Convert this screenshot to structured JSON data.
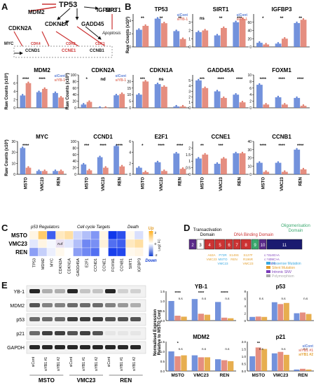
{
  "panels": {
    "A": "A",
    "B": "B",
    "C": "C",
    "D": "D",
    "E": "E"
  },
  "panelA": {
    "genes": [
      "TP53",
      "MDM2",
      "IGFBP3",
      "SIRT1",
      "CDKN2A",
      "CDKN1A",
      "GADD45",
      "Apoptosis",
      "MYC",
      "CDK4",
      "CDK2",
      "CDK1",
      "CCND1",
      "CCNE1",
      "CCNB1"
    ]
  },
  "legend": {
    "sicont": "siCont",
    "siyb1": "siYB-1",
    "siyb1_1": "siYB1 #1",
    "siyb1_2": "siYB1 #2"
  },
  "ylabels": {
    "raw": "Raw Counts (x10³)",
    "norm": "Normalised Expression\nRelative to MSTO Cont"
  },
  "cell_lines": [
    "MSTO",
    "VMC23",
    "REN"
  ],
  "colors": {
    "sicont": "#5b7fd6",
    "siyb1": "#e07a6a",
    "siyb1_2": "#e3a030"
  },
  "chart_data": [
    {
      "type": "bar",
      "title": "TP53",
      "categories": [
        "MSTO",
        "VMC23",
        "REN"
      ],
      "ylim": [
        0,
        5
      ],
      "yticks": [
        0,
        2,
        4
      ],
      "series": [
        {
          "name": "siCont",
          "values": [
            2.6,
            4.3,
            2.4
          ]
        },
        {
          "name": "siYB-1",
          "values": [
            3.2,
            3.6,
            1.2
          ]
        }
      ],
      "annotations": [
        "**",
        "**",
        "**"
      ]
    },
    {
      "type": "bar",
      "title": "SIRT1",
      "categories": [
        "MSTO",
        "VMC23",
        "REN"
      ],
      "ylim": [
        0,
        4
      ],
      "yticks": [
        0,
        1,
        2,
        3
      ],
      "series": [
        {
          "name": "siCont",
          "values": [
            1.8,
            1.4,
            3.0
          ]
        },
        {
          "name": "siYB-1",
          "values": [
            2.0,
            2.3,
            3.4
          ]
        }
      ],
      "annotations": [
        "ns",
        "**",
        "***"
      ]
    },
    {
      "type": "bar",
      "title": "IGFBP3",
      "categories": [
        "MSTO",
        "VMC23",
        "REN"
      ],
      "ylim": [
        0,
        80
      ],
      "yticks": [
        0,
        20,
        40,
        60
      ],
      "series": [
        {
          "name": "siCont",
          "values": [
            10,
            8,
            58
          ]
        },
        {
          "name": "siYB-1",
          "values": [
            6,
            20,
            66
          ]
        }
      ],
      "annotations": [
        "*",
        "**",
        "**"
      ]
    },
    {
      "type": "bar",
      "title": "MDM2",
      "categories": [
        "MSTO",
        "VMC23",
        "REN"
      ],
      "ylim": [
        0,
        8
      ],
      "yticks": [
        0,
        2,
        4,
        6
      ],
      "series": [
        {
          "name": "siCont",
          "values": [
            3.0,
            3.8,
            3.6
          ]
        },
        {
          "name": "siYB-1",
          "values": [
            6.0,
            4.6,
            2.5
          ]
        }
      ],
      "annotations": [
        "****",
        "****",
        ""
      ]
    },
    {
      "type": "bar",
      "title": "CDKN2A",
      "categories": [
        "MSTO",
        "VMC23",
        "REN"
      ],
      "ylim": [
        0,
        100
      ],
      "yticks": [
        0,
        20,
        40,
        60,
        80,
        100
      ],
      "series": [
        {
          "name": "siCont",
          "values": [
            10,
            0,
            38
          ]
        },
        {
          "name": "siYB-1",
          "values": [
            18,
            0,
            42
          ]
        }
      ],
      "annotations": [
        "*",
        "nd",
        ""
      ]
    },
    {
      "type": "bar",
      "title": "CDKN1A",
      "categories": [
        "MSTO",
        "VMC23",
        "REN"
      ],
      "ylim": [
        0,
        25
      ],
      "yticks": [
        0,
        5,
        10,
        15,
        20
      ],
      "series": [
        {
          "name": "siCont",
          "values": [
            10,
            18,
            1
          ]
        },
        {
          "name": "siYB-1",
          "values": [
            20,
            16,
            1
          ]
        }
      ],
      "annotations": [
        "***",
        "ns",
        ""
      ]
    },
    {
      "type": "bar",
      "title": "GADD45A",
      "categories": [
        "MSTO",
        "VMC23",
        "REN"
      ],
      "ylim": [
        0,
        6
      ],
      "yticks": [
        0,
        1,
        2,
        3,
        4,
        5
      ],
      "series": [
        {
          "name": "siCont",
          "values": [
            5.0,
            3.0,
            2.4
          ]
        },
        {
          "name": "siYB-1",
          "values": [
            3.6,
            1.8,
            1.0
          ]
        }
      ],
      "annotations": [
        "***",
        "****",
        "****"
      ]
    },
    {
      "type": "bar",
      "title": "FOXM1",
      "categories": [
        "MSTO",
        "VMC23",
        "REN"
      ],
      "ylim": [
        0,
        10
      ],
      "yticks": [
        0,
        2,
        4,
        6,
        8,
        10
      ],
      "series": [
        {
          "name": "siCont",
          "values": [
            7.0,
            3.2,
            3.0
          ]
        },
        {
          "name": "siYB-1",
          "values": [
            1.0,
            1.0,
            0.6
          ]
        }
      ],
      "annotations": [
        "****",
        "****",
        "****"
      ]
    },
    {
      "type": "bar",
      "title": "MYC",
      "categories": [
        "MSTO",
        "VMC23",
        "REN"
      ],
      "ylim": [
        0,
        30
      ],
      "yticks": [
        0,
        10,
        20,
        30
      ],
      "series": [
        {
          "name": "siCont",
          "values": [
            24,
            3,
            3
          ]
        },
        {
          "name": "siYB-1",
          "values": [
            6,
            3,
            3
          ]
        }
      ],
      "annotations": [
        "****",
        "",
        ""
      ]
    },
    {
      "type": "bar",
      "title": "CCND1",
      "categories": [
        "MSTO",
        "VMC23",
        "REN"
      ],
      "ylim": [
        0,
        100
      ],
      "yticks": [
        0,
        20,
        40,
        60,
        80,
        100
      ],
      "series": [
        {
          "name": "siCont",
          "values": [
            30,
            52,
            86
          ]
        },
        {
          "name": "siYB-1",
          "values": [
            12,
            20,
            24
          ]
        }
      ],
      "annotations": [
        "***",
        "****",
        "****"
      ]
    },
    {
      "type": "bar",
      "title": "E2F1",
      "categories": [
        "MSTO",
        "VMC23",
        "REN"
      ],
      "ylim": [
        0,
        6
      ],
      "yticks": [
        0,
        2,
        4,
        6
      ],
      "series": [
        {
          "name": "siCont",
          "values": [
            1.2,
            2.2,
            3.8
          ]
        },
        {
          "name": "siYB-1",
          "values": [
            0.4,
            0.6,
            1.0
          ]
        }
      ],
      "annotations": [
        "*",
        "****",
        "****"
      ]
    },
    {
      "type": "bar",
      "title": "CCNE1",
      "categories": [
        "MSTO",
        "VMC23",
        "REN"
      ],
      "ylim": [
        0,
        2.5
      ],
      "yticks": [
        0,
        0.5,
        1.0,
        1.5,
        2.0
      ],
      "series": [
        {
          "name": "siCont",
          "values": [
            1.2,
            0.8,
            1.6
          ]
        },
        {
          "name": "siYB-1",
          "values": [
            1.5,
            1.2,
            1.6
          ]
        }
      ],
      "annotations": [
        "**",
        "***",
        ""
      ]
    },
    {
      "type": "bar",
      "title": "CCNB1",
      "categories": [
        "MSTO",
        "VMC23",
        "REN"
      ],
      "ylim": [
        0,
        40
      ],
      "yticks": [
        0,
        10,
        20,
        30,
        40
      ],
      "series": [
        {
          "name": "siCont",
          "values": [
            14,
            14,
            30
          ]
        },
        {
          "name": "siYB-1",
          "values": [
            3,
            3,
            6
          ]
        }
      ],
      "annotations": [
        "****",
        "****",
        "****"
      ]
    }
  ],
  "heatmap": {
    "rows": [
      "MSTO",
      "VMC23",
      "REN"
    ],
    "groups": [
      "p53 Regulators",
      "Cell cycle Targets",
      "Death"
    ],
    "cols": [
      "TP53",
      "MDM2",
      "MYC",
      "CDKN2A",
      "CDKN1A",
      "GADD45A",
      "E2F1",
      "CCND1",
      "CCNE1",
      "FOXM1",
      "CCNB1",
      "SIRT1",
      "IGFBP3"
    ],
    "values": [
      [
        0.3,
        1.6,
        -2.0,
        0.7,
        1.0,
        -0.5,
        -0.8,
        -1.3,
        0.3,
        -2.5,
        -2.2,
        0.2,
        -0.4
      ],
      [
        -0.3,
        0.3,
        -0.1,
        null,
        -0.3,
        -0.8,
        -1.5,
        -1.4,
        0.4,
        -1.8,
        -2.0,
        0.7,
        1.0
      ],
      [
        -1.2,
        -0.6,
        -0.2,
        0.2,
        0.0,
        -1.2,
        -1.5,
        -1.8,
        0.0,
        -2.4,
        -2.3,
        0.2,
        0.3
      ]
    ],
    "na": "n.d",
    "scale": {
      "up": "Up",
      "down": "Down",
      "ticks": [
        "2",
        "0",
        "-2"
      ],
      "label": "Log2 FC"
    }
  },
  "domainD": {
    "labels": {
      "trans": "Transactivation\nDomain",
      "dbd": "DNA Binding Domain",
      "oligo": "Oligomerisation\nDomain"
    },
    "exons": [
      "2",
      "3",
      "4",
      "5",
      "6",
      "7",
      "8",
      "9",
      "10",
      "11"
    ],
    "mutations": [
      "A63A",
      "VMC23",
      "P72R",
      "MSTO",
      "VMC23",
      "S149S",
      "REN",
      "S127F",
      "R196R",
      "VMC23",
      "c.*314G>A",
      "c.*409C>A",
      "REN"
    ],
    "legend": [
      {
        "label": "Missense Mutation",
        "color": "#3aa8e0"
      },
      {
        "label": "Silent Mutation",
        "color": "#e3a030"
      },
      {
        "label": "Intronic SNV",
        "color": "#7a3ab8"
      },
      {
        "label": "Polymorphism",
        "color": "#aaaaaa"
      }
    ]
  },
  "western": {
    "bands": [
      "YB-1",
      "MDM2",
      "p53",
      "p21",
      "GAPDH"
    ],
    "lanes": [
      "siCont",
      "siYB1 #1",
      "siYB1 #2",
      "siCont",
      "siYB1 #1",
      "siYB1 #2",
      "siCont",
      "siYB1 #1",
      "siYB1 #2"
    ],
    "lines": [
      "MSTO",
      "VMC23",
      "REN"
    ]
  },
  "quant_data": [
    {
      "type": "bar",
      "title": "YB-1",
      "ylim": [
        0,
        1.5
      ],
      "yticks": [
        "0.0",
        "0.5",
        "1.0",
        "1.5"
      ],
      "series": [
        {
          "name": "siCont",
          "values": [
            1.0,
            1.1,
            0.95
          ]
        },
        {
          "name": "siYB1 #1",
          "values": [
            0.25,
            0.35,
            0.15
          ]
        },
        {
          "name": "siYB1 #2",
          "values": [
            0.2,
            0.3,
            0.12
          ]
        }
      ],
      "annotations": [
        "****",
        "****",
        "*****"
      ],
      "ns": [
        "n.s",
        "n.s",
        "n.s"
      ]
    },
    {
      "type": "bar",
      "title": "p53",
      "ylim": [
        0,
        8
      ],
      "yticks": [
        "0",
        "2",
        "4",
        "6",
        "8"
      ],
      "series": [
        {
          "name": "siCont",
          "values": [
            1.0,
            5.0,
            2.0
          ]
        },
        {
          "name": "siYB1 #1",
          "values": [
            1.1,
            4.5,
            2.2
          ]
        },
        {
          "name": "siYB1 #2",
          "values": [
            1.0,
            4.8,
            1.8
          ]
        }
      ],
      "annotations": [
        "",
        "",
        ""
      ],
      "ns": [
        "n.s",
        "n.s",
        "n.s"
      ]
    },
    {
      "type": "bar",
      "title": "MDM2",
      "ylim": [
        0,
        1.5
      ],
      "yticks": [
        "0.0",
        "0.5",
        "1.0",
        "1.5"
      ],
      "series": [
        {
          "name": "siCont",
          "values": [
            1.0,
            0.8,
            0.6
          ]
        },
        {
          "name": "siYB1 #1",
          "values": [
            0.75,
            0.7,
            0.55
          ]
        },
        {
          "name": "siYB1 #2",
          "values": [
            0.8,
            0.7,
            0.5
          ]
        }
      ],
      "annotations": [
        "*",
        "",
        ""
      ],
      "ns": [
        "n.s",
        "n.s",
        "n.s"
      ]
    },
    {
      "type": "bar",
      "title": "p21",
      "ylim": [
        0,
        2.0
      ],
      "yticks": [
        "0.0",
        "0.5",
        "1.0",
        "1.5",
        "2.0"
      ],
      "series": [
        {
          "name": "siCont",
          "values": [
            1.0,
            1.2,
            0.1
          ]
        },
        {
          "name": "siYB1 #1",
          "values": [
            1.6,
            1.3,
            0.15
          ]
        },
        {
          "name": "siYB1 #2",
          "values": [
            1.5,
            1.1,
            0.1
          ]
        }
      ],
      "annotations": [
        "**",
        "",
        ""
      ],
      "ns": [
        "n.s",
        "n.s",
        "n.s"
      ]
    }
  ]
}
